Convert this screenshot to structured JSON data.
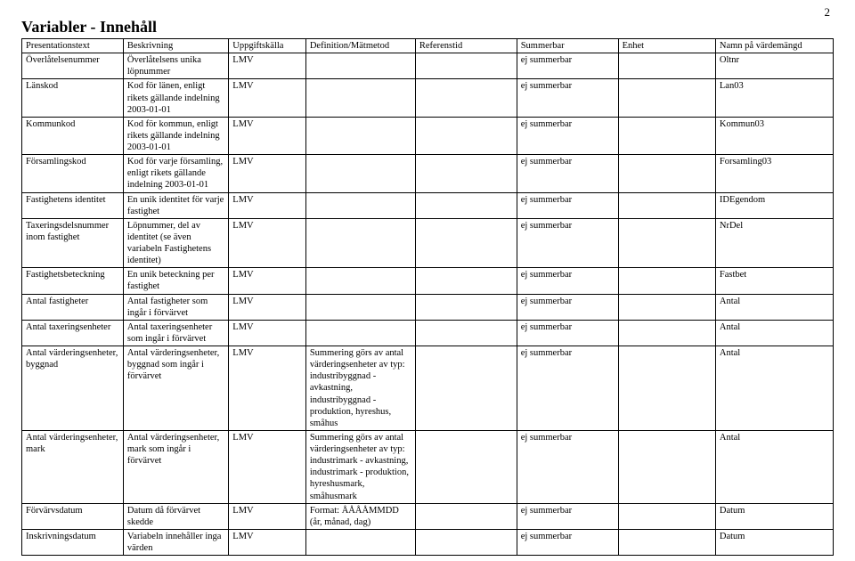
{
  "page_number": "2",
  "title": "Variabler - Innehåll",
  "table": {
    "columns": [
      "Presentationstext",
      "Beskrivning",
      "Uppgiftskälla",
      "Definition/Mätmetod",
      "Referenstid",
      "Summerbar",
      "Enhet",
      "Namn på värdemängd"
    ],
    "rows": [
      {
        "c0": "Överlåtelsenummer",
        "c1": "Överlåtelsens unika löpnummer",
        "c2": "LMV",
        "c3": "",
        "c4": "",
        "c5": "ej summerbar",
        "c6": "",
        "c7": "Oltnr"
      },
      {
        "c0": "Länskod",
        "c1": "Kod för länen, enligt rikets gällande indelning 2003-01-01",
        "c2": "LMV",
        "c3": "",
        "c4": "",
        "c5": "ej summerbar",
        "c6": "",
        "c7": "Lan03"
      },
      {
        "c0": "Kommunkod",
        "c1": "Kod för kommun, enligt rikets gällande indelning 2003-01-01",
        "c2": "LMV",
        "c3": "",
        "c4": "",
        "c5": "ej summerbar",
        "c6": "",
        "c7": "Kommun03"
      },
      {
        "c0": "Församlingskod",
        "c1": "Kod för varje församling, enligt rikets gällande indelning 2003-01-01",
        "c2": "LMV",
        "c3": "",
        "c4": "",
        "c5": "ej summerbar",
        "c6": "",
        "c7": "Forsamling03"
      },
      {
        "c0": "Fastighetens identitet",
        "c1": "En unik identitet för varje fastighet",
        "c2": "LMV",
        "c3": "",
        "c4": "",
        "c5": "ej summerbar",
        "c6": "",
        "c7": "IDEgendom"
      },
      {
        "c0": "Taxeringsdelsnummer inom fastighet",
        "c1": "Löpnummer, del av identitet (se även variabeln Fastighetens identitet)",
        "c2": "LMV",
        "c3": "",
        "c4": "",
        "c5": "ej summerbar",
        "c6": "",
        "c7": "NrDel"
      },
      {
        "c0": "Fastighetsbeteckning",
        "c1": "En unik beteckning per fastighet",
        "c2": "LMV",
        "c3": "",
        "c4": "",
        "c5": "ej summerbar",
        "c6": "",
        "c7": "Fastbet"
      },
      {
        "c0": "Antal fastigheter",
        "c1": "Antal fastigheter som ingår i förvärvet",
        "c2": "LMV",
        "c3": "",
        "c4": "",
        "c5": "ej summerbar",
        "c6": "",
        "c7": "Antal"
      },
      {
        "c0": "Antal taxeringsenheter",
        "c1": "Antal taxeringsenheter som ingår i förvärvet",
        "c2": "LMV",
        "c3": "",
        "c4": "",
        "c5": "ej summerbar",
        "c6": "",
        "c7": "Antal"
      },
      {
        "c0": "Antal värderingsenheter, byggnad",
        "c1": "Antal värderingsenheter, byggnad som ingår i förvärvet",
        "c2": "LMV",
        "c3": "Summering görs av antal värderingsenheter av typ: industribyggnad - avkastning, industribyggnad - produktion, hyreshus, småhus",
        "c4": "",
        "c5": "ej summerbar",
        "c6": "",
        "c7": "Antal"
      },
      {
        "c0": "Antal värderingsenheter, mark",
        "c1": "Antal värderingsenheter, mark som ingår i förvärvet",
        "c2": "LMV",
        "c3": "Summering görs av antal värderingsenheter av typ: industrimark - avkastning, industrimark - produktion, hyreshusmark, småhusmark",
        "c4": "",
        "c5": "ej summerbar",
        "c6": "",
        "c7": "Antal"
      },
      {
        "c0": "Förvärvsdatum",
        "c1": "Datum då förvärvet skedde",
        "c2": "LMV",
        "c3": "Format: ÅÅÅÅMMDD (år, månad, dag)",
        "c4": "",
        "c5": "ej summerbar",
        "c6": "",
        "c7": "Datum"
      },
      {
        "c0": "Inskrivningsdatum",
        "c1": "Variabeln innehåller inga värden",
        "c2": "LMV",
        "c3": "",
        "c4": "",
        "c5": "ej summerbar",
        "c6": "",
        "c7": "Datum"
      }
    ]
  },
  "style": {
    "background_color": "#ffffff",
    "text_color": "#000000",
    "border_color": "#000000",
    "title_fontsize_pt": 18,
    "body_fontsize_pt": 10.5,
    "font_family": "Times New Roman"
  }
}
